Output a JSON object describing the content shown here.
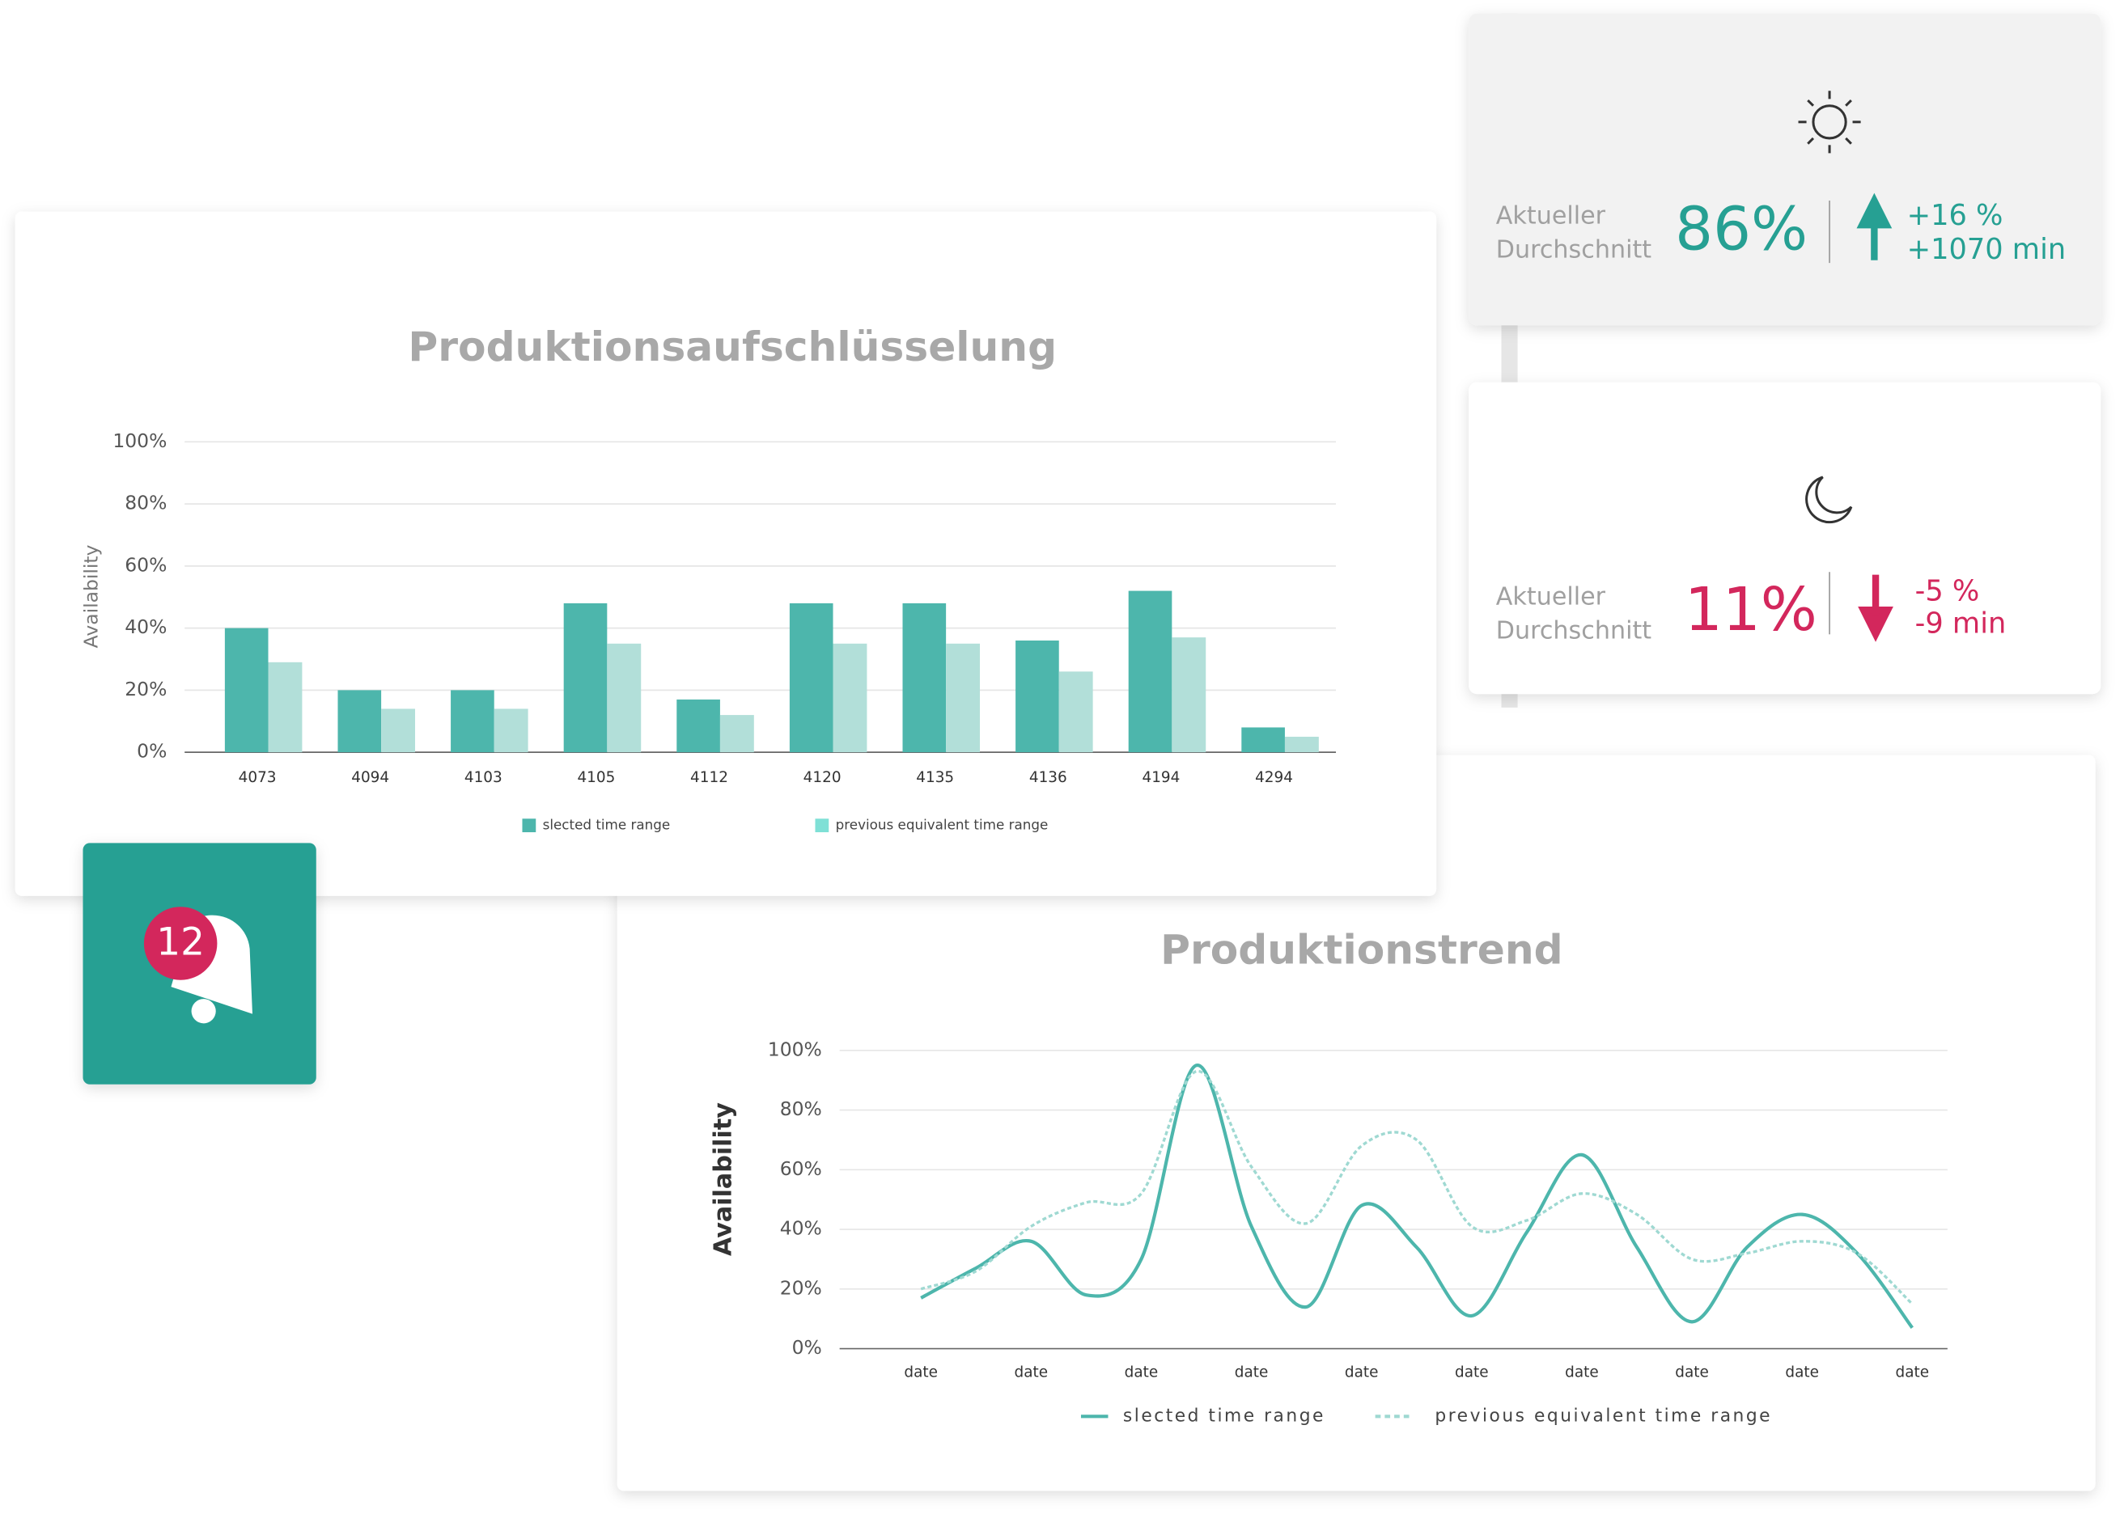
{
  "chart_data": [
    {
      "type": "bar",
      "title": "Produktionsaufschlüsselung",
      "y_label": "Availability",
      "categories": [
        "4073",
        "4094",
        "4103",
        "4105",
        "4112",
        "4120",
        "4135",
        "4136",
        "4194",
        "4294"
      ],
      "series": [
        {
          "name": "slected time range",
          "color": "#4db6ac",
          "values": [
            40,
            20,
            20,
            48,
            17,
            48,
            48,
            36,
            52,
            8
          ]
        },
        {
          "name": "previous equivalent time range",
          "color": "#b2dfd9",
          "legend_color": "#7fe0d6",
          "values": [
            29,
            14,
            14,
            35,
            12,
            35,
            35,
            26,
            37,
            5
          ]
        }
      ],
      "ylim": [
        0,
        100
      ],
      "yticks": [
        {
          "value": 0,
          "label": "0%"
        },
        {
          "value": 20,
          "label": "20%"
        },
        {
          "value": 40,
          "label": "40%"
        },
        {
          "value": 60,
          "label": "60%"
        },
        {
          "value": 80,
          "label": "80%"
        },
        {
          "value": 100,
          "label": "100%"
        }
      ],
      "grid": true
    },
    {
      "type": "line",
      "title": "Produktionstrend",
      "y_label": "Availability",
      "categories": [
        "date",
        null,
        "date",
        null,
        "date",
        null,
        "date",
        null,
        "date",
        null,
        "date",
        null,
        "date",
        null,
        "date",
        null,
        "date",
        null,
        "date"
      ],
      "series": [
        {
          "name": "slected time range",
          "color": "#4db6ac",
          "dash": false,
          "values": [
            17,
            27,
            36,
            18,
            30,
            95,
            41,
            14,
            48,
            34,
            11,
            39,
            65,
            34,
            9,
            34,
            45,
            32,
            7
          ]
        },
        {
          "name": "previous equivalent time range",
          "color": "#9fd9d2",
          "dash": true,
          "values": [
            20,
            26,
            41,
            49,
            52,
            93,
            61,
            42,
            68,
            70,
            41,
            43,
            52,
            45,
            30,
            32,
            36,
            32,
            15
          ]
        }
      ],
      "ylim": [
        0,
        100
      ],
      "yticks": [
        {
          "value": 0,
          "label": "0%"
        },
        {
          "value": 20,
          "label": "20%"
        },
        {
          "value": 40,
          "label": "40%"
        },
        {
          "value": 60,
          "label": "60%"
        },
        {
          "value": 80,
          "label": "80%"
        },
        {
          "value": 100,
          "label": "100%"
        }
      ],
      "grid": true
    }
  ],
  "cards": [
    {
      "label_lines": [
        "Aktueller",
        "Durchschnitt"
      ],
      "value": "86%",
      "deltas": [
        "+16 %",
        "+1070 min"
      ],
      "trend": "up",
      "color": "#26a093"
    },
    {
      "label_lines": [
        "Aktueller",
        "Durchschnitt"
      ],
      "value": "11%",
      "deltas": [
        "-5 %",
        "-9 min"
      ],
      "trend": "down",
      "color": "#d3275c"
    }
  ],
  "notification": {
    "count": "12"
  }
}
